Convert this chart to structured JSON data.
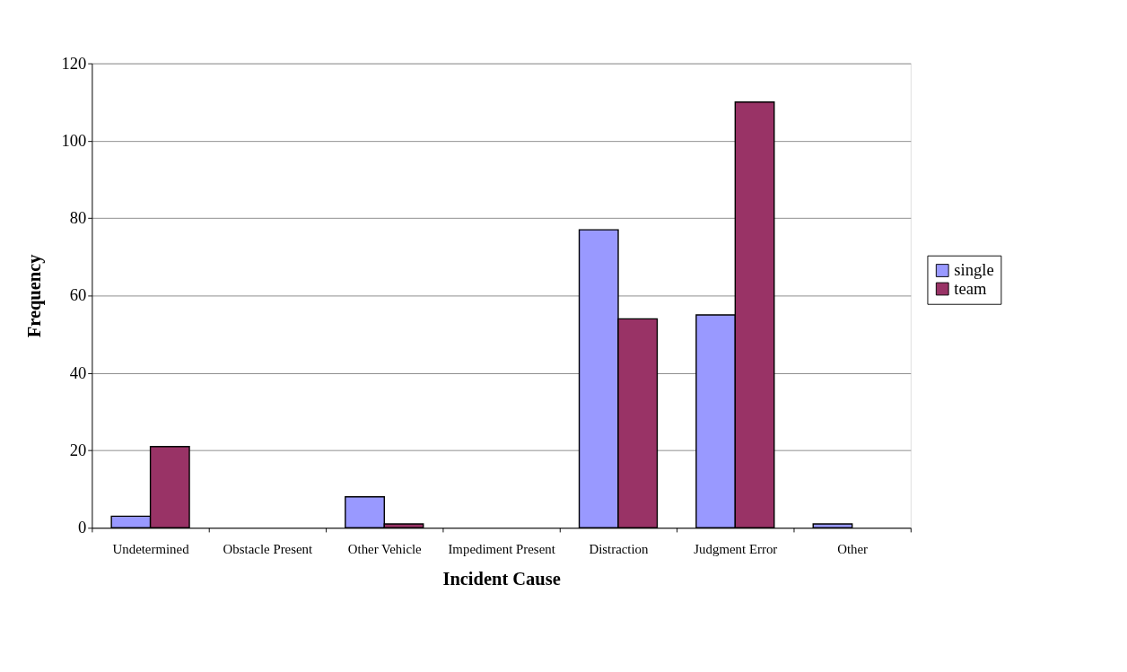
{
  "chart_data": {
    "type": "bar",
    "xlabel": "Incident Cause",
    "ylabel": "Frequency",
    "categories": [
      "Undetermined",
      "Obstacle Present",
      "Other Vehicle",
      "Impediment Present",
      "Distraction",
      "Judgment Error",
      "Other"
    ],
    "series": [
      {
        "name": "single",
        "color": "#9999ff",
        "values": [
          3,
          0,
          8,
          0,
          77,
          55,
          1
        ]
      },
      {
        "name": "team",
        "color": "#993366",
        "values": [
          21,
          0,
          1,
          0,
          54,
          110,
          0
        ]
      }
    ],
    "ylim": [
      0,
      120
    ],
    "yticks": [
      0,
      20,
      40,
      60,
      80,
      100,
      120
    ],
    "grid": "y",
    "legend": "right"
  }
}
